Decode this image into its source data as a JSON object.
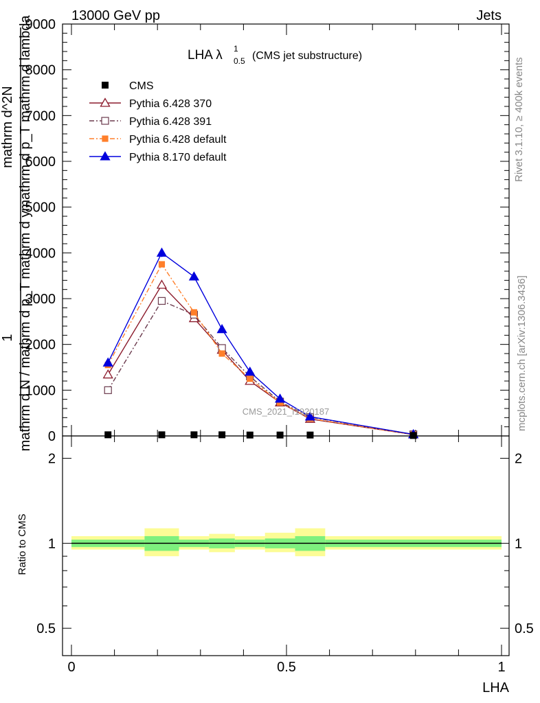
{
  "header": {
    "energy": "13000 GeV pp",
    "process": "Jets"
  },
  "side": {
    "rivet": "Rivet 3.1.10, ≥ 400k events",
    "mcplots": "mcplots.cern.ch [arXiv:1306.3436]"
  },
  "chart_data": {
    "type": "line",
    "title": "LHA λ",
    "title_sup": "1",
    "title_sub": "0.5",
    "title_suffix": "(CMS jet substructure)",
    "watermark": "CMS_2021_I1920187",
    "xlabel": "LHA",
    "ylabel_lines": [
      "1",
      "mathrm d N / mathrm d p_T mathrm d y",
      "mathrm d^2N",
      "mathrm d p_T mathrm d lambda"
    ],
    "ratio_ylabel": "Ratio to CMS",
    "xlim": [
      0,
      1
    ],
    "ylim": [
      0,
      9000
    ],
    "x_ticks": [
      0,
      0.5,
      1
    ],
    "x_tick_labels": [
      "0",
      "0.5",
      "1"
    ],
    "y_ticks": [
      0,
      1000,
      2000,
      3000,
      4000,
      5000,
      6000,
      7000,
      8000,
      9000
    ],
    "y_tick_labels": [
      "0",
      "1000",
      "2000",
      "3000",
      "4000",
      "5000",
      "6000",
      "7000",
      "8000",
      "9000"
    ],
    "ratio_ylim": [
      0.4,
      2.4
    ],
    "ratio_ticks": [
      0.5,
      1,
      2
    ],
    "ratio_tick_labels": [
      "0.5",
      "1",
      "2"
    ],
    "ratio_log": true,
    "legend_position": "top-left",
    "bin_edges": [
      0,
      0.17,
      0.25,
      0.32,
      0.38,
      0.45,
      0.52,
      0.59,
      1.0
    ],
    "x": [
      0.085,
      0.21,
      0.285,
      0.35,
      0.415,
      0.485,
      0.555,
      0.795
    ],
    "data": {
      "name": "CMS",
      "values": [
        25,
        25,
        25,
        25,
        20,
        20,
        20,
        10
      ],
      "color": "#000000"
    },
    "series": [
      {
        "name": "Pythia 6.428 370",
        "values": [
          1340,
          3300,
          2570,
          1880,
          1200,
          730,
          370,
          30
        ],
        "color": "#8b1a2b",
        "marker": "open-triangle",
        "dash": ""
      },
      {
        "name": "Pythia 6.428 391",
        "values": [
          1000,
          2950,
          2650,
          1920,
          1300,
          750,
          410,
          35
        ],
        "color": "#6b3a4d",
        "marker": "open-square",
        "dash": "7,3,2,3"
      },
      {
        "name": "Pythia 6.428 default",
        "values": [
          1550,
          3750,
          2700,
          1800,
          1250,
          730,
          380,
          30
        ],
        "color": "#ff7f2a",
        "marker": "filled-square",
        "dash": "7,3,2,3"
      },
      {
        "name": "Pythia 8.170 default",
        "values": [
          1600,
          4000,
          3480,
          2330,
          1400,
          810,
          420,
          35
        ],
        "color": "#0000dd",
        "marker": "filled-triangle",
        "dash": ""
      }
    ],
    "pythia8_errors": [
      40,
      90,
      80,
      60,
      40,
      30,
      20,
      5
    ],
    "ratio_bands": {
      "inner": [
        [
          0.97,
          1.03
        ],
        [
          0.94,
          1.06
        ],
        [
          0.97,
          1.03
        ],
        [
          0.96,
          1.04
        ],
        [
          0.97,
          1.03
        ],
        [
          0.96,
          1.04
        ],
        [
          0.94,
          1.06
        ],
        [
          0.97,
          1.03
        ]
      ],
      "outer": [
        [
          0.95,
          1.06
        ],
        [
          0.9,
          1.13
        ],
        [
          0.95,
          1.06
        ],
        [
          0.93,
          1.08
        ],
        [
          0.95,
          1.06
        ],
        [
          0.93,
          1.09
        ],
        [
          0.9,
          1.13
        ],
        [
          0.95,
          1.06
        ]
      ],
      "inner_color": "#7ef07e",
      "outer_color": "#fcfc96"
    }
  }
}
